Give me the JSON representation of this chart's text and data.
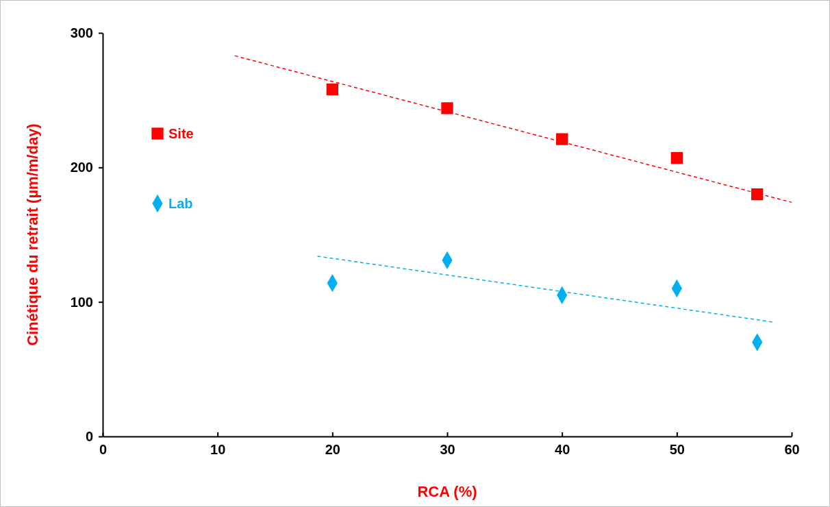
{
  "chart_data": {
    "type": "scatter",
    "xlabel": "RCA (%)",
    "ylabel": "Cinétique du retrait (µm/m/day)",
    "xlim": [
      0,
      60
    ],
    "ylim": [
      0,
      300
    ],
    "xticks": [
      0,
      10,
      20,
      30,
      40,
      50,
      60
    ],
    "yticks": [
      0,
      100,
      200,
      300
    ],
    "grid": false,
    "legend": "left",
    "series": [
      {
        "name": "Site",
        "color": "#ff0000",
        "marker": "square",
        "x": [
          20,
          30,
          40,
          50,
          57
        ],
        "values": [
          258,
          244,
          221,
          207,
          180
        ]
      },
      {
        "name": "Lab",
        "color": "#00b0f0",
        "marker": "diamond",
        "x": [
          20,
          30,
          40,
          50,
          57
        ],
        "values": [
          114,
          131,
          105,
          110,
          70
        ]
      },
      {
        "type": "line",
        "color": "#ff0000",
        "line_style": "dashed",
        "marker": "none",
        "x": [
          11.5,
          60
        ],
        "values": [
          283,
          174
        ]
      },
      {
        "type": "line",
        "color": "#00b0f0",
        "line_style": "dashed",
        "marker": "none",
        "x": [
          18.7,
          58.4
        ],
        "values": [
          134,
          85
        ]
      }
    ]
  }
}
